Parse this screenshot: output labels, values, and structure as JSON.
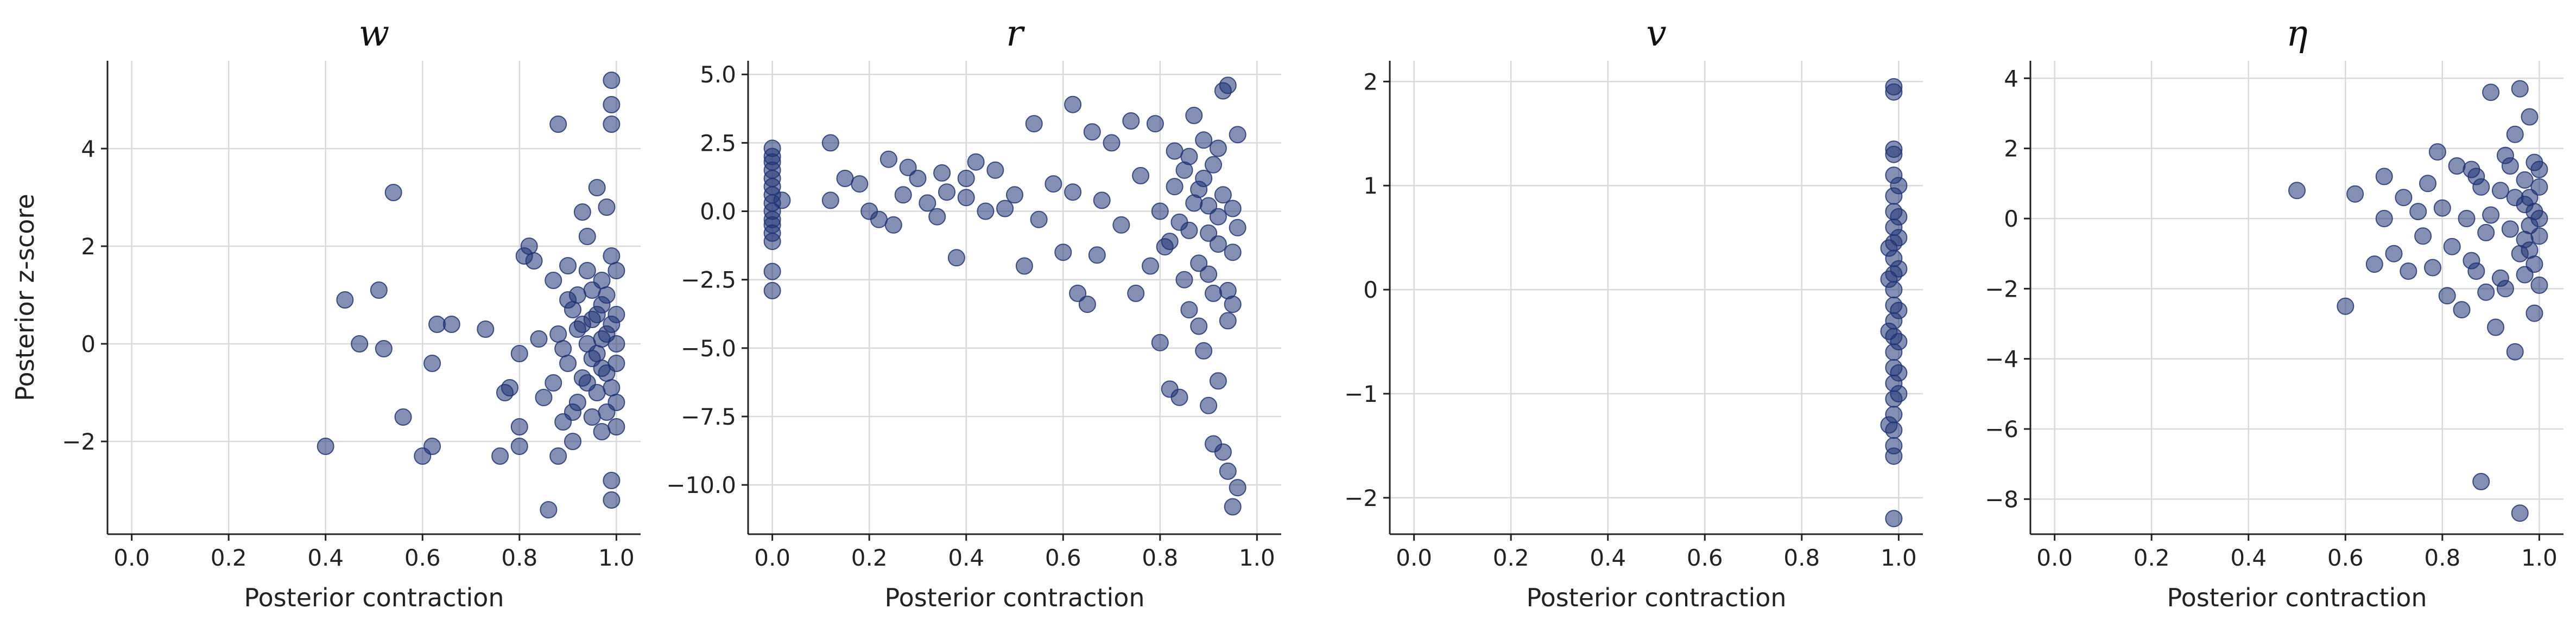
{
  "figure": {
    "shared_xlabel": "Posterior contraction",
    "shared_ylabel": "Posterior z-score",
    "point_color": "#1f3474",
    "point_opacity": 0.55
  },
  "chart_data": [
    {
      "type": "scatter",
      "title": "w",
      "xlabel": "Posterior contraction",
      "ylabel": "Posterior z-score",
      "xlim": [
        -0.05,
        1.05
      ],
      "ylim": [
        -3.9,
        5.8
      ],
      "xticks": [
        0.0,
        0.2,
        0.4,
        0.6,
        0.8,
        1.0
      ],
      "xtick_labels": [
        "0.0",
        "0.2",
        "0.4",
        "0.6",
        "0.8",
        "1.0"
      ],
      "yticks": [
        -2,
        0,
        2,
        4
      ],
      "ytick_labels": [
        "−2",
        "0",
        "2",
        "4"
      ],
      "grid": true,
      "points": [
        [
          0.4,
          -2.1
        ],
        [
          0.44,
          0.9
        ],
        [
          0.47,
          0.0
        ],
        [
          0.51,
          1.1
        ],
        [
          0.52,
          -0.1
        ],
        [
          0.54,
          3.1
        ],
        [
          0.56,
          -1.5
        ],
        [
          0.6,
          -2.3
        ],
        [
          0.62,
          -2.1
        ],
        [
          0.62,
          -0.4
        ],
        [
          0.63,
          0.4
        ],
        [
          0.66,
          0.4
        ],
        [
          0.73,
          0.3
        ],
        [
          0.76,
          -2.3
        ],
        [
          0.77,
          -1.0
        ],
        [
          0.78,
          -0.9
        ],
        [
          0.8,
          -2.1
        ],
        [
          0.8,
          -1.7
        ],
        [
          0.8,
          -0.2
        ],
        [
          0.81,
          1.8
        ],
        [
          0.82,
          2.0
        ],
        [
          0.83,
          1.7
        ],
        [
          0.84,
          0.1
        ],
        [
          0.85,
          -1.1
        ],
        [
          0.86,
          -3.4
        ],
        [
          0.87,
          -0.8
        ],
        [
          0.87,
          1.3
        ],
        [
          0.88,
          4.5
        ],
        [
          0.88,
          -2.3
        ],
        [
          0.89,
          -0.1
        ],
        [
          0.9,
          0.9
        ],
        [
          0.9,
          1.6
        ],
        [
          0.91,
          -2.0
        ],
        [
          0.91,
          -1.4
        ],
        [
          0.92,
          0.3
        ],
        [
          0.92,
          1.0
        ],
        [
          0.93,
          2.7
        ],
        [
          0.93,
          -0.7
        ],
        [
          0.94,
          2.2
        ],
        [
          0.94,
          1.5
        ],
        [
          0.95,
          0.5
        ],
        [
          0.95,
          -0.3
        ],
        [
          0.96,
          3.2
        ],
        [
          0.96,
          -1.0
        ],
        [
          0.97,
          0.8
        ],
        [
          0.97,
          -1.8
        ],
        [
          0.97,
          1.3
        ],
        [
          0.98,
          0.2
        ],
        [
          0.98,
          -0.6
        ],
        [
          0.98,
          2.8
        ],
        [
          0.99,
          5.4
        ],
        [
          0.99,
          4.9
        ],
        [
          0.99,
          4.5
        ],
        [
          0.99,
          -2.8
        ],
        [
          0.99,
          -3.2
        ],
        [
          0.99,
          1.8
        ],
        [
          1.0,
          0.0
        ],
        [
          1.0,
          -1.2
        ],
        [
          1.0,
          0.6
        ],
        [
          1.0,
          -0.4
        ],
        [
          0.97,
          0.1
        ],
        [
          0.97,
          -0.5
        ],
        [
          0.98,
          1.0
        ],
        [
          0.98,
          -1.4
        ],
        [
          0.99,
          0.4
        ],
        [
          0.99,
          -0.9
        ],
        [
          1.0,
          1.5
        ],
        [
          1.0,
          -1.7
        ],
        [
          0.96,
          0.6
        ],
        [
          0.96,
          -0.2
        ],
        [
          0.95,
          1.1
        ],
        [
          0.95,
          -1.5
        ],
        [
          0.94,
          0.0
        ],
        [
          0.94,
          -0.8
        ],
        [
          0.93,
          0.4
        ],
        [
          0.92,
          -1.2
        ],
        [
          0.91,
          0.7
        ],
        [
          0.9,
          -0.4
        ],
        [
          0.89,
          -1.6
        ],
        [
          0.88,
          0.2
        ]
      ]
    },
    {
      "type": "scatter",
      "title": "r",
      "xlabel": "Posterior contraction",
      "ylabel": "",
      "xlim": [
        -0.05,
        1.05
      ],
      "ylim": [
        -11.8,
        5.5
      ],
      "xticks": [
        0.0,
        0.2,
        0.4,
        0.6,
        0.8,
        1.0
      ],
      "xtick_labels": [
        "0.0",
        "0.2",
        "0.4",
        "0.6",
        "0.8",
        "1.0"
      ],
      "yticks": [
        -10.0,
        -7.5,
        -5.0,
        -2.5,
        0.0,
        2.5,
        5.0
      ],
      "ytick_labels": [
        "−10.0",
        "−7.5",
        "−5.0",
        "−2.5",
        "0.0",
        "2.5",
        "5.0"
      ],
      "grid": true,
      "points": [
        [
          0.0,
          2.3
        ],
        [
          0.0,
          1.8
        ],
        [
          0.0,
          1.2
        ],
        [
          0.0,
          0.6
        ],
        [
          0.0,
          0.0
        ],
        [
          0.0,
          -0.5
        ],
        [
          0.0,
          -1.1
        ],
        [
          0.0,
          -2.2
        ],
        [
          0.0,
          -2.9
        ],
        [
          0.0,
          2.0
        ],
        [
          0.0,
          1.5
        ],
        [
          0.0,
          0.9
        ],
        [
          0.0,
          0.3
        ],
        [
          0.0,
          -0.3
        ],
        [
          0.0,
          -0.8
        ],
        [
          0.02,
          0.4
        ],
        [
          0.12,
          2.5
        ],
        [
          0.12,
          0.4
        ],
        [
          0.15,
          1.2
        ],
        [
          0.18,
          1.0
        ],
        [
          0.2,
          0.0
        ],
        [
          0.22,
          -0.3
        ],
        [
          0.24,
          1.9
        ],
        [
          0.25,
          -0.5
        ],
        [
          0.27,
          0.6
        ],
        [
          0.28,
          1.6
        ],
        [
          0.3,
          1.2
        ],
        [
          0.32,
          0.3
        ],
        [
          0.34,
          -0.2
        ],
        [
          0.35,
          1.4
        ],
        [
          0.36,
          0.7
        ],
        [
          0.38,
          -1.7
        ],
        [
          0.4,
          0.5
        ],
        [
          0.4,
          1.2
        ],
        [
          0.42,
          1.8
        ],
        [
          0.44,
          0.0
        ],
        [
          0.46,
          1.5
        ],
        [
          0.48,
          0.1
        ],
        [
          0.5,
          0.6
        ],
        [
          0.52,
          -2.0
        ],
        [
          0.54,
          3.2
        ],
        [
          0.55,
          -0.3
        ],
        [
          0.58,
          1.0
        ],
        [
          0.6,
          -1.5
        ],
        [
          0.62,
          0.7
        ],
        [
          0.62,
          3.9
        ],
        [
          0.63,
          -3.0
        ],
        [
          0.65,
          -3.4
        ],
        [
          0.66,
          2.9
        ],
        [
          0.67,
          -1.6
        ],
        [
          0.68,
          0.4
        ],
        [
          0.7,
          2.5
        ],
        [
          0.72,
          -0.5
        ],
        [
          0.74,
          3.3
        ],
        [
          0.75,
          -3.0
        ],
        [
          0.76,
          1.3
        ],
        [
          0.78,
          -2.0
        ],
        [
          0.79,
          3.2
        ],
        [
          0.8,
          0.0
        ],
        [
          0.8,
          -4.8
        ],
        [
          0.81,
          -1.3
        ],
        [
          0.82,
          -6.5
        ],
        [
          0.83,
          2.2
        ],
        [
          0.84,
          -6.8
        ],
        [
          0.85,
          1.5
        ],
        [
          0.86,
          -3.6
        ],
        [
          0.86,
          -0.7
        ],
        [
          0.87,
          3.5
        ],
        [
          0.88,
          -4.2
        ],
        [
          0.88,
          0.8
        ],
        [
          0.89,
          -5.1
        ],
        [
          0.9,
          -7.1
        ],
        [
          0.9,
          -2.3
        ],
        [
          0.91,
          -8.5
        ],
        [
          0.91,
          1.7
        ],
        [
          0.92,
          -0.2
        ],
        [
          0.92,
          -6.2
        ],
        [
          0.93,
          -8.8
        ],
        [
          0.93,
          4.4
        ],
        [
          0.94,
          -4.0
        ],
        [
          0.94,
          -9.5
        ],
        [
          0.95,
          -10.8
        ],
        [
          0.95,
          -1.5
        ],
        [
          0.96,
          -10.1
        ],
        [
          0.96,
          2.8
        ],
        [
          0.94,
          4.6
        ],
        [
          0.9,
          -0.8
        ],
        [
          0.89,
          1.2
        ],
        [
          0.88,
          -1.9
        ],
        [
          0.87,
          0.3
        ],
        [
          0.86,
          2.0
        ],
        [
          0.85,
          -2.5
        ],
        [
          0.84,
          -0.4
        ],
        [
          0.83,
          0.9
        ],
        [
          0.82,
          -1.1
        ],
        [
          0.92,
          2.3
        ],
        [
          0.93,
          0.6
        ],
        [
          0.94,
          -2.9
        ],
        [
          0.95,
          0.1
        ],
        [
          0.95,
          -3.4
        ],
        [
          0.96,
          -0.6
        ],
        [
          0.9,
          0.2
        ],
        [
          0.91,
          -3.0
        ],
        [
          0.89,
          2.6
        ],
        [
          0.92,
          -1.2
        ]
      ]
    },
    {
      "type": "scatter",
      "title": "v",
      "xlabel": "Posterior contraction",
      "ylabel": "",
      "xlim": [
        -0.05,
        1.05
      ],
      "ylim": [
        -2.35,
        2.2
      ],
      "xticks": [
        0.0,
        0.2,
        0.4,
        0.6,
        0.8,
        1.0
      ],
      "xtick_labels": [
        "0.0",
        "0.2",
        "0.4",
        "0.6",
        "0.8",
        "1.0"
      ],
      "yticks": [
        -2,
        -1,
        0,
        1,
        2
      ],
      "ytick_labels": [
        "−2",
        "−1",
        "0",
        "1",
        "2"
      ],
      "grid": true,
      "points": [
        [
          0.99,
          1.95
        ],
        [
          0.99,
          1.9
        ],
        [
          0.99,
          1.35
        ],
        [
          0.99,
          1.3
        ],
        [
          0.99,
          1.1
        ],
        [
          0.99,
          0.9
        ],
        [
          0.99,
          0.75
        ],
        [
          0.99,
          0.6
        ],
        [
          0.99,
          0.45
        ],
        [
          0.99,
          0.3
        ],
        [
          0.99,
          0.15
        ],
        [
          0.99,
          0.0
        ],
        [
          0.99,
          -0.15
        ],
        [
          0.99,
          -0.3
        ],
        [
          0.99,
          -0.45
        ],
        [
          0.99,
          -0.6
        ],
        [
          0.99,
          -0.75
        ],
        [
          0.99,
          -0.9
        ],
        [
          0.99,
          -1.05
        ],
        [
          0.99,
          -1.2
        ],
        [
          0.99,
          -1.35
        ],
        [
          0.99,
          -1.5
        ],
        [
          0.99,
          -1.6
        ],
        [
          0.99,
          -2.2
        ],
        [
          1.0,
          1.0
        ],
        [
          1.0,
          0.5
        ],
        [
          1.0,
          0.2
        ],
        [
          1.0,
          -0.2
        ],
        [
          1.0,
          -0.5
        ],
        [
          1.0,
          -1.0
        ],
        [
          1.0,
          0.7
        ],
        [
          1.0,
          -0.8
        ],
        [
          0.98,
          0.4
        ],
        [
          0.98,
          -0.4
        ],
        [
          0.98,
          0.1
        ],
        [
          0.98,
          -1.3
        ]
      ]
    },
    {
      "type": "scatter",
      "title": "η",
      "xlabel": "Posterior contraction",
      "ylabel": "",
      "xlim": [
        -0.05,
        1.05
      ],
      "ylim": [
        -9.0,
        4.5
      ],
      "xticks": [
        0.0,
        0.2,
        0.4,
        0.6,
        0.8,
        1.0
      ],
      "xtick_labels": [
        "0.0",
        "0.2",
        "0.4",
        "0.6",
        "0.8",
        "1.0"
      ],
      "yticks": [
        -8,
        -6,
        -4,
        -2,
        0,
        2,
        4
      ],
      "ytick_labels": [
        "−8",
        "−6",
        "−4",
        "−2",
        "0",
        "2",
        "4"
      ],
      "grid": true,
      "points": [
        [
          0.5,
          0.8
        ],
        [
          0.6,
          -2.5
        ],
        [
          0.62,
          0.7
        ],
        [
          0.66,
          -1.3
        ],
        [
          0.68,
          1.2
        ],
        [
          0.68,
          0.0
        ],
        [
          0.7,
          -1.0
        ],
        [
          0.72,
          0.6
        ],
        [
          0.73,
          -1.5
        ],
        [
          0.75,
          0.2
        ],
        [
          0.76,
          -0.5
        ],
        [
          0.77,
          1.0
        ],
        [
          0.78,
          -1.4
        ],
        [
          0.79,
          1.9
        ],
        [
          0.8,
          0.3
        ],
        [
          0.81,
          -2.2
        ],
        [
          0.82,
          -0.8
        ],
        [
          0.83,
          1.5
        ],
        [
          0.84,
          -2.6
        ],
        [
          0.85,
          0.0
        ],
        [
          0.86,
          -1.2
        ],
        [
          0.87,
          1.2
        ],
        [
          0.88,
          -7.5
        ],
        [
          0.89,
          -0.4
        ],
        [
          0.9,
          3.6
        ],
        [
          0.91,
          -3.1
        ],
        [
          0.92,
          0.8
        ],
        [
          0.93,
          -2.0
        ],
        [
          0.94,
          1.5
        ],
        [
          0.95,
          -3.8
        ],
        [
          0.95,
          2.4
        ],
        [
          0.96,
          3.7
        ],
        [
          0.96,
          -8.4
        ],
        [
          0.97,
          0.4
        ],
        [
          0.97,
          -1.6
        ],
        [
          0.98,
          2.9
        ],
        [
          0.98,
          -0.9
        ],
        [
          0.99,
          1.6
        ],
        [
          0.99,
          -2.7
        ],
        [
          1.0,
          0.0
        ],
        [
          1.0,
          -0.5
        ],
        [
          1.0,
          0.9
        ],
        [
          0.99,
          0.2
        ],
        [
          0.98,
          -0.2
        ],
        [
          0.97,
          1.1
        ],
        [
          0.96,
          -1.0
        ],
        [
          0.95,
          0.6
        ],
        [
          0.94,
          -0.3
        ],
        [
          0.93,
          1.8
        ],
        [
          0.92,
          -1.7
        ],
        [
          0.9,
          0.1
        ],
        [
          0.89,
          -2.1
        ],
        [
          0.88,
          0.9
        ],
        [
          0.87,
          -1.5
        ],
        [
          0.86,
          1.4
        ],
        [
          0.99,
          -1.3
        ],
        [
          1.0,
          1.4
        ],
        [
          1.0,
          -1.9
        ],
        [
          0.98,
          0.6
        ],
        [
          0.97,
          -0.6
        ]
      ]
    }
  ]
}
